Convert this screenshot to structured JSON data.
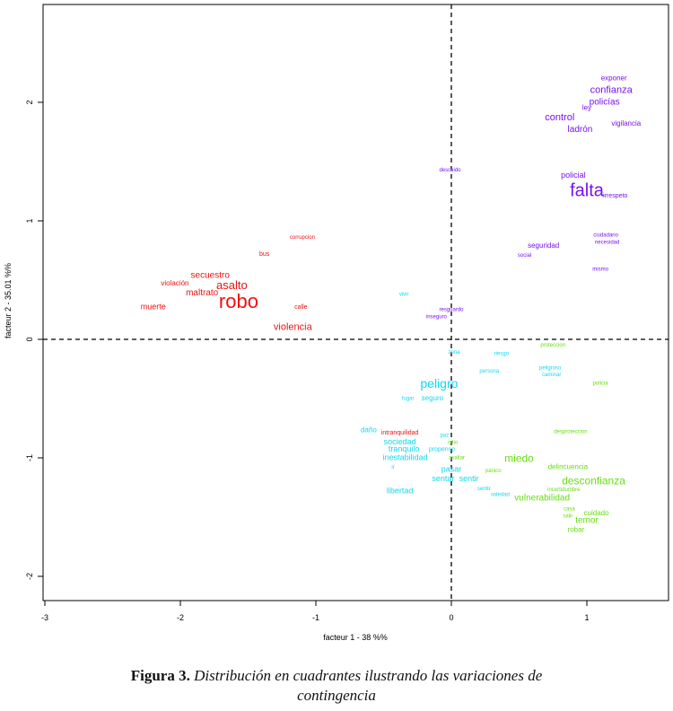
{
  "chart_data": {
    "type": "scatter",
    "xlabel": "facteur 1 - 38 %%",
    "ylabel": "facteur 2 - 35.01 %%",
    "xlim": [
      -3.1,
      1.6
    ],
    "ylim": [
      -2.2,
      2.8
    ],
    "x_ticks": [
      "-3",
      "-2",
      "-1",
      "0",
      "1"
    ],
    "y_ticks": [
      "-2",
      "-1",
      "0",
      "1",
      "2"
    ],
    "reference_lines": {
      "x": 0,
      "y": 0,
      "style": "dashed"
    },
    "colors": {
      "red": "#ee1111",
      "purple": "#7711ee",
      "cyan": "#11d8ee",
      "green": "#66dd11"
    },
    "points": [
      {
        "label": "robo",
        "x": -1.57,
        "y": 0.31,
        "size": 22,
        "color": "red"
      },
      {
        "label": "asalto",
        "x": -1.62,
        "y": 0.45,
        "size": 13,
        "color": "red"
      },
      {
        "label": "secuestro",
        "x": -1.78,
        "y": 0.54,
        "size": 10,
        "color": "red"
      },
      {
        "label": "maltrato",
        "x": -1.84,
        "y": 0.39,
        "size": 10,
        "color": "red"
      },
      {
        "label": "violación",
        "x": -2.04,
        "y": 0.47,
        "size": 8,
        "color": "red"
      },
      {
        "label": "muerte",
        "x": -2.2,
        "y": 0.27,
        "size": 9,
        "color": "red"
      },
      {
        "label": "violencia",
        "x": -1.17,
        "y": 0.1,
        "size": 11,
        "color": "red"
      },
      {
        "label": "calle",
        "x": -1.11,
        "y": 0.27,
        "size": 7,
        "color": "red"
      },
      {
        "label": "bus",
        "x": -1.38,
        "y": 0.72,
        "size": 7,
        "color": "red"
      },
      {
        "label": "corrupcion",
        "x": -1.1,
        "y": 0.86,
        "size": 6,
        "color": "red"
      },
      {
        "label": "intranquilidad",
        "x": -0.38,
        "y": -0.79,
        "size": 7,
        "color": "red"
      },
      {
        "label": "falta",
        "x": 1.0,
        "y": 1.25,
        "size": 20,
        "color": "purple"
      },
      {
        "label": "confianza",
        "x": 1.18,
        "y": 2.1,
        "size": 11,
        "color": "purple"
      },
      {
        "label": "policías",
        "x": 1.13,
        "y": 2.0,
        "size": 10,
        "color": "purple"
      },
      {
        "label": "control",
        "x": 0.8,
        "y": 1.87,
        "size": 11,
        "color": "purple"
      },
      {
        "label": "ladrón",
        "x": 0.95,
        "y": 1.77,
        "size": 10,
        "color": "purple"
      },
      {
        "label": "exponer",
        "x": 1.2,
        "y": 2.2,
        "size": 8,
        "color": "purple"
      },
      {
        "label": "ley",
        "x": 1.0,
        "y": 1.95,
        "size": 8,
        "color": "purple"
      },
      {
        "label": "vigilancia",
        "x": 1.29,
        "y": 1.82,
        "size": 8,
        "color": "purple"
      },
      {
        "label": "policial",
        "x": 0.9,
        "y": 1.38,
        "size": 9,
        "color": "purple"
      },
      {
        "label": "irrespeto",
        "x": 1.21,
        "y": 1.21,
        "size": 7,
        "color": "purple"
      },
      {
        "label": "descuido",
        "x": -0.01,
        "y": 1.43,
        "size": 6,
        "color": "purple"
      },
      {
        "label": "seguridad",
        "x": 0.68,
        "y": 0.79,
        "size": 8,
        "color": "purple"
      },
      {
        "label": "social",
        "x": 0.54,
        "y": 0.71,
        "size": 6,
        "color": "purple"
      },
      {
        "label": "ciudadano",
        "x": 1.14,
        "y": 0.88,
        "size": 6,
        "color": "purple"
      },
      {
        "label": "necesidad",
        "x": 1.15,
        "y": 0.82,
        "size": 6,
        "color": "purple"
      },
      {
        "label": "mismo",
        "x": 1.1,
        "y": 0.59,
        "size": 6,
        "color": "purple"
      },
      {
        "label": "resguardo",
        "x": 0.0,
        "y": 0.25,
        "size": 6,
        "color": "purple"
      },
      {
        "label": "inseguro",
        "x": -0.11,
        "y": 0.19,
        "size": 6,
        "color": "purple"
      },
      {
        "label": "peligro",
        "x": -0.09,
        "y": -0.38,
        "size": 14,
        "color": "cyan"
      },
      {
        "label": "seguro",
        "x": -0.14,
        "y": -0.5,
        "size": 8,
        "color": "cyan"
      },
      {
        "label": "fugar",
        "x": -0.32,
        "y": -0.5,
        "size": 6,
        "color": "cyan"
      },
      {
        "label": "vivir",
        "x": -0.35,
        "y": 0.38,
        "size": 6,
        "color": "cyan"
      },
      {
        "label": "zona",
        "x": 0.02,
        "y": -0.11,
        "size": 6,
        "color": "cyan"
      },
      {
        "label": "riesgo",
        "x": 0.37,
        "y": -0.12,
        "size": 6,
        "color": "cyan"
      },
      {
        "label": "persona",
        "x": 0.28,
        "y": -0.27,
        "size": 6,
        "color": "cyan"
      },
      {
        "label": "peligroso",
        "x": 0.73,
        "y": -0.24,
        "size": 6,
        "color": "cyan"
      },
      {
        "label": "caminar",
        "x": 0.74,
        "y": -0.3,
        "size": 6,
        "color": "cyan"
      },
      {
        "label": "daño",
        "x": -0.61,
        "y": -0.77,
        "size": 8,
        "color": "cyan"
      },
      {
        "label": "sociedad",
        "x": -0.38,
        "y": -0.87,
        "size": 9,
        "color": "cyan"
      },
      {
        "label": "tranquilo",
        "x": -0.35,
        "y": -0.93,
        "size": 9,
        "color": "cyan"
      },
      {
        "label": "inestabilidad",
        "x": -0.34,
        "y": -1.0,
        "size": 9,
        "color": "cyan"
      },
      {
        "label": "ir",
        "x": -0.43,
        "y": -1.08,
        "size": 6,
        "color": "cyan"
      },
      {
        "label": "paz",
        "x": -0.05,
        "y": -0.81,
        "size": 6,
        "color": "cyan"
      },
      {
        "label": "propenso",
        "x": -0.07,
        "y": -0.93,
        "size": 7,
        "color": "cyan"
      },
      {
        "label": "pasar",
        "x": 0.0,
        "y": -1.1,
        "size": 9,
        "color": "cyan"
      },
      {
        "label": "sentar",
        "x": -0.06,
        "y": -1.18,
        "size": 9,
        "color": "cyan"
      },
      {
        "label": "sentir",
        "x": 0.13,
        "y": -1.18,
        "size": 9,
        "color": "cyan"
      },
      {
        "label": "libertad",
        "x": -0.38,
        "y": -1.28,
        "size": 9,
        "color": "cyan"
      },
      {
        "label": "sentir",
        "x": 0.24,
        "y": -1.26,
        "size": 6,
        "color": "cyan"
      },
      {
        "label": "soledad",
        "x": 0.36,
        "y": -1.31,
        "size": 6,
        "color": "cyan"
      },
      {
        "label": "miedo",
        "x": 0.5,
        "y": -1.01,
        "size": 12,
        "color": "green"
      },
      {
        "label": "desconfianza",
        "x": 1.05,
        "y": -1.2,
        "size": 12,
        "color": "green"
      },
      {
        "label": "vulnerabilidad",
        "x": 0.67,
        "y": -1.34,
        "size": 10,
        "color": "green"
      },
      {
        "label": "temor",
        "x": 1.0,
        "y": -1.53,
        "size": 10,
        "color": "green"
      },
      {
        "label": "delincuencia",
        "x": 0.86,
        "y": -1.08,
        "size": 8,
        "color": "green"
      },
      {
        "label": "incertidumbre",
        "x": 0.83,
        "y": -1.27,
        "size": 6,
        "color": "green"
      },
      {
        "label": "cuidado",
        "x": 1.07,
        "y": -1.47,
        "size": 8,
        "color": "green"
      },
      {
        "label": "casa",
        "x": 0.87,
        "y": -1.43,
        "size": 6,
        "color": "green"
      },
      {
        "label": "salir",
        "x": 0.86,
        "y": -1.49,
        "size": 6,
        "color": "green"
      },
      {
        "label": "robar",
        "x": 0.92,
        "y": -1.61,
        "size": 8,
        "color": "green"
      },
      {
        "label": "proteccion",
        "x": 0.75,
        "y": -0.05,
        "size": 6,
        "color": "green"
      },
      {
        "label": "policia",
        "x": 1.1,
        "y": -0.37,
        "size": 6,
        "color": "green"
      },
      {
        "label": "desproteccion",
        "x": 0.88,
        "y": -0.78,
        "size": 6,
        "color": "green"
      },
      {
        "label": "pánico",
        "x": 0.31,
        "y": -1.11,
        "size": 6,
        "color": "green"
      },
      {
        "label": "asaltar",
        "x": 0.04,
        "y": -1.0,
        "size": 6,
        "color": "green"
      },
      {
        "label": "odio",
        "x": 0.01,
        "y": -0.87,
        "size": 6,
        "color": "green"
      }
    ]
  },
  "caption": {
    "label": "Figura 3.",
    "text_line1": "Distribución en cuadrantes ilustrando las variaciones de",
    "text_line2": "contingencia"
  }
}
